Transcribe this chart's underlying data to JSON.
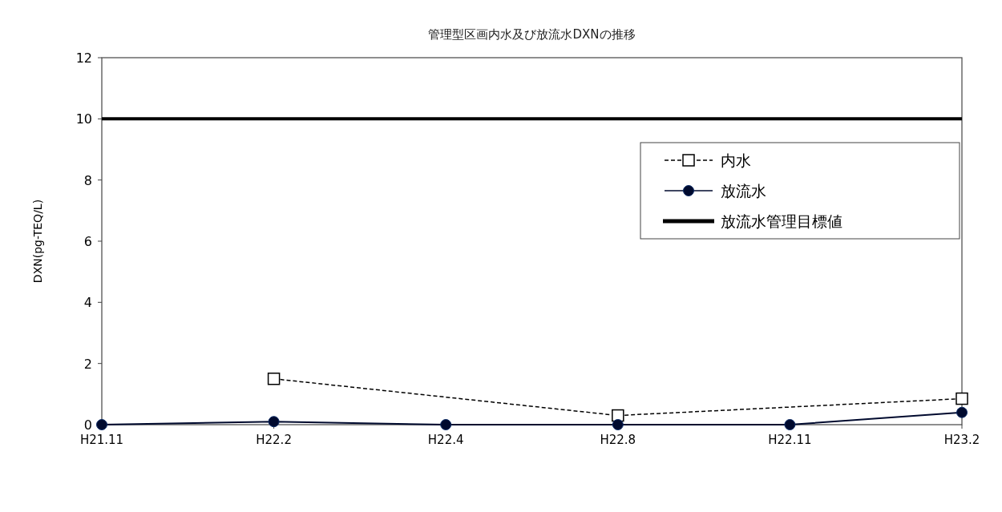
{
  "chart_data": {
    "type": "line",
    "title": "管理型区画内水及び放流水DXNの推移",
    "ylabel": "DXN(pg-TEQ/L)",
    "categories": [
      "H21.11",
      "H22.2",
      "H22.4",
      "H22.8",
      "H22.11",
      "H23.2"
    ],
    "series": [
      {
        "name": "内水",
        "color": "#000000",
        "marker": "square",
        "line_style": "dashed",
        "values": [
          null,
          1.5,
          null,
          0.3,
          null,
          0.85
        ]
      },
      {
        "name": "放流水",
        "color": "#000a2e",
        "marker": "circle",
        "line_style": "solid",
        "values": [
          0,
          0.1,
          0,
          0,
          0,
          0.4
        ]
      }
    ],
    "ylim": [
      0,
      12
    ],
    "yticks": [
      0,
      2,
      4,
      6,
      8,
      10,
      12
    ],
    "ref_lines": [
      {
        "axis": "y",
        "value": 10,
        "label": "放流水管理目標値",
        "color": "#000000"
      }
    ],
    "legend": "top right"
  }
}
